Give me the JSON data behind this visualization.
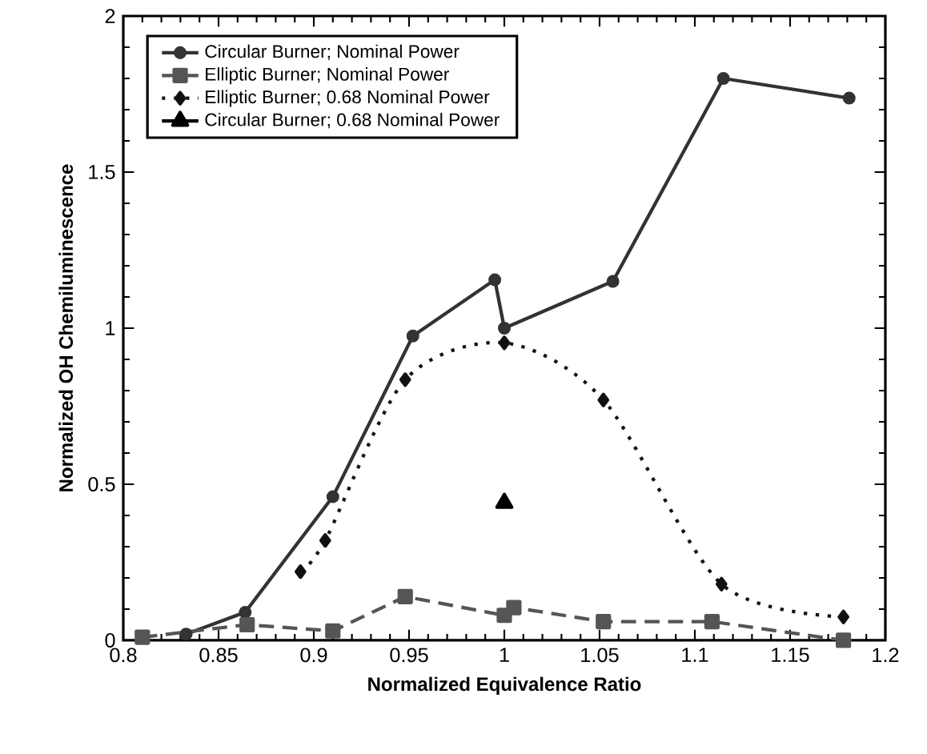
{
  "chart_data": {
    "type": "line",
    "xlabel": "Normalized Equivalence Ratio",
    "ylabel": "Normalized OH Chemiluminescence",
    "xlim": [
      0.8,
      1.2
    ],
    "ylim": [
      0,
      2
    ],
    "xticks": [
      0.8,
      0.85,
      0.9,
      0.95,
      1,
      1.05,
      1.1,
      1.15,
      1.2
    ],
    "yticks": [
      0,
      0.5,
      1,
      1.5,
      2
    ],
    "grid": false,
    "legend": "top left",
    "series": [
      {
        "name": "Circular Burner; Nominal Power",
        "color": "#333333",
        "marker": "circle",
        "line_style": "solid",
        "x": [
          0.833,
          0.864,
          0.91,
          0.952,
          0.995,
          1.0,
          1.057,
          1.115,
          1.181
        ],
        "values": [
          0.02,
          0.09,
          0.46,
          0.975,
          1.155,
          1.0,
          1.15,
          1.8,
          1.737
        ]
      },
      {
        "name": "Elliptic Burner; Nominal Power",
        "color": "#555555",
        "marker": "square",
        "line_style": "dashed",
        "x": [
          0.81,
          0.865,
          0.91,
          0.948,
          1.0,
          1.005,
          1.052,
          1.109,
          1.178
        ],
        "values": [
          0.01,
          0.05,
          0.03,
          0.14,
          0.08,
          0.105,
          0.06,
          0.06,
          0.0
        ]
      },
      {
        "name": "Elliptic Burner; 0.68 Nominal Power",
        "color": "#111111",
        "marker": "diamond",
        "line_style": "dotted",
        "x": [
          0.893,
          0.906,
          0.948,
          1.0,
          1.052,
          1.114,
          1.178
        ],
        "values": [
          0.22,
          0.32,
          0.835,
          0.953,
          0.77,
          0.18,
          0.075
        ]
      },
      {
        "name": "Circular Burner; 0.68 Nominal Power",
        "color": "#000000",
        "marker": "triangle",
        "line_style": "dashed",
        "x": [
          1.0
        ],
        "values": [
          0.44
        ]
      }
    ]
  }
}
